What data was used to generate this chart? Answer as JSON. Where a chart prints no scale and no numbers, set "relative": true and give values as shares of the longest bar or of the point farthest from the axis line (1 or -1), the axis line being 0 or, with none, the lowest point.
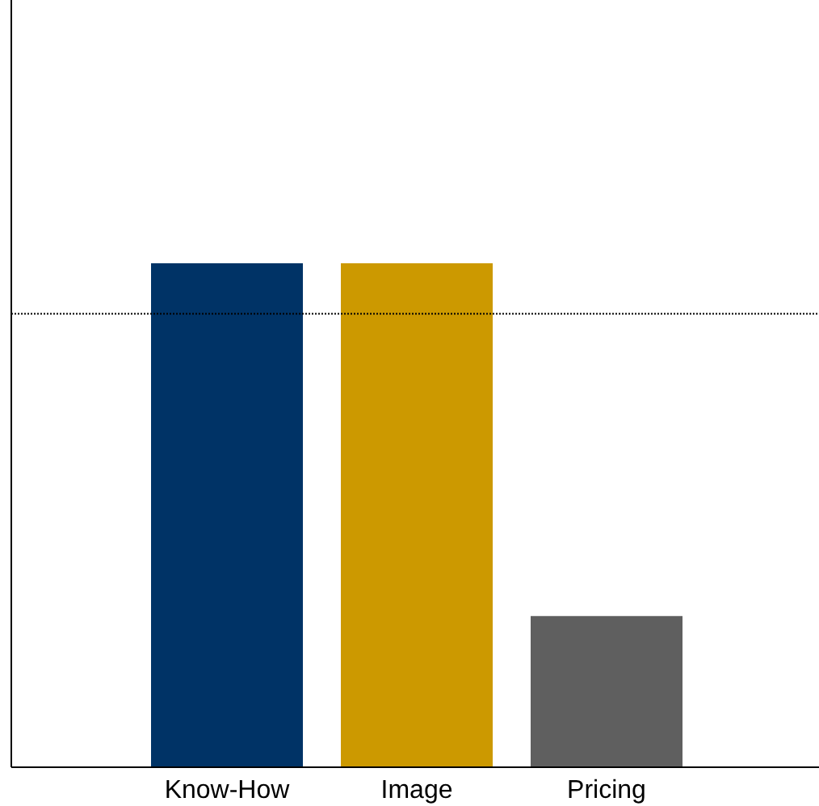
{
  "chart_data": {
    "type": "bar",
    "relative": true,
    "categories": [
      "Know-How",
      "Image",
      "Pricing"
    ],
    "values": [
      1,
      1,
      0.3
    ],
    "colors": [
      "#003366",
      "#cc9900",
      "#5f5f5f"
    ],
    "ref_lines": [
      {
        "axis": "y",
        "value": 0.9,
        "color": "#000000",
        "line_style": "dotted"
      }
    ]
  }
}
